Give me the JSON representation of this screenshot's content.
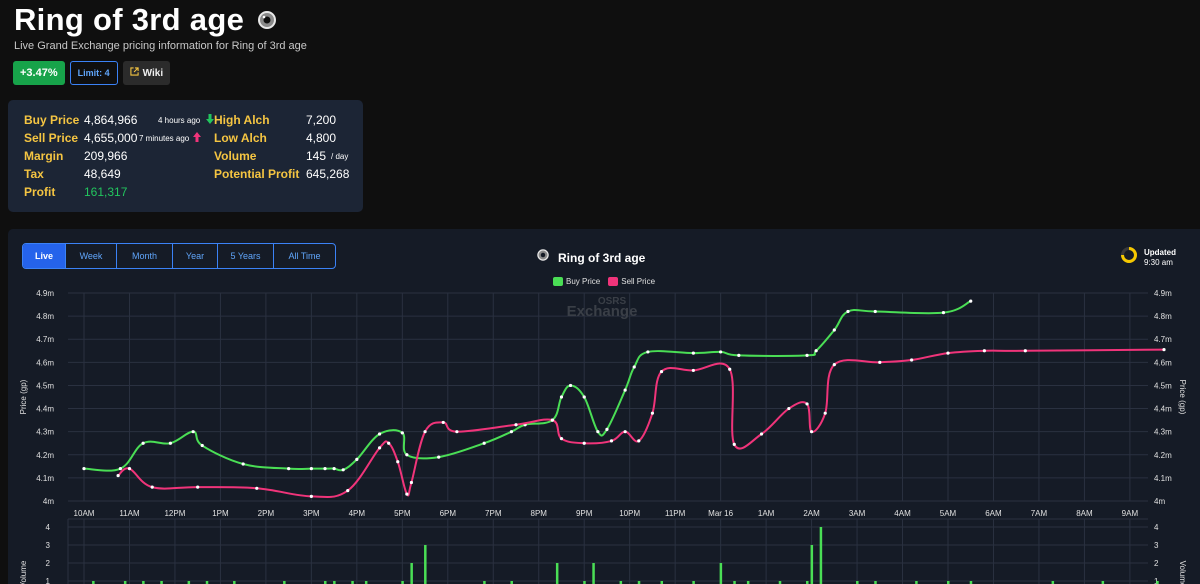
{
  "item": {
    "title": "Ring of 3rd age",
    "subtitle": "Live Grand Exchange pricing information for Ring of 3rd age"
  },
  "badges": {
    "change": "+3.47%",
    "limit": "Limit: 4",
    "wiki": "Wiki"
  },
  "stats": {
    "buy_label": "Buy Price",
    "buy_value": "4,864,966",
    "buy_ago": "4 hours ago",
    "sell_label": "Sell Price",
    "sell_value": "4,655,000",
    "sell_ago": "7 minutes ago",
    "margin_label": "Margin",
    "margin_value": "209,966",
    "tax_label": "Tax",
    "tax_value": "48,649",
    "profit_label": "Profit",
    "profit_value": "161,317",
    "high_alch_label": "High Alch",
    "high_alch_value": "7,200",
    "low_alch_label": "Low Alch",
    "low_alch_value": "4,800",
    "volume_label": "Volume",
    "volume_value": "145",
    "volume_unit": "/ day",
    "potential_label": "Potential Profit",
    "potential_value": "645,268"
  },
  "colors": {
    "buy": "#4ade55",
    "sell": "#f0347a",
    "accent": "#2563eb",
    "label": "#f5c542",
    "positive": "#17a34a"
  },
  "tabs": [
    "Live",
    "Week",
    "Month",
    "Year",
    "5 Years",
    "All Time"
  ],
  "active_tab": "Live",
  "chart_header": {
    "title": "Ring of 3rd age",
    "watermark_top": "OSRS",
    "watermark_bottom": "Exchange",
    "updated_label": "Updated",
    "updated_time": "9:30 am"
  },
  "chart_data": {
    "type": "line",
    "ylabel": "Price (gp)",
    "y2label": "Volume",
    "y_ticks": [
      "4m",
      "4.1m",
      "4.2m",
      "4.3m",
      "4.4m",
      "4.5m",
      "4.6m",
      "4.7m",
      "4.8m",
      "4.9m"
    ],
    "ylim": [
      4000000,
      4900000
    ],
    "x_ticks": [
      "10AM",
      "11AM",
      "12PM",
      "1PM",
      "2PM",
      "3PM",
      "4PM",
      "5PM",
      "6PM",
      "7PM",
      "8PM",
      "9PM",
      "10PM",
      "11PM",
      "Mar 16",
      "1AM",
      "2AM",
      "3AM",
      "4AM",
      "5AM",
      "6AM",
      "7AM",
      "8AM",
      "9AM"
    ],
    "xlim": [
      0,
      23.75
    ],
    "grid": true,
    "legend": "top-center",
    "series": [
      {
        "name": "Buy Price",
        "color": "#4ade55",
        "points": [
          [
            0,
            4140000
          ],
          [
            0.8,
            4140000
          ],
          [
            1.3,
            4250000
          ],
          [
            1.9,
            4250000
          ],
          [
            2.4,
            4300000
          ],
          [
            2.6,
            4240000
          ],
          [
            3.5,
            4160000
          ],
          [
            4.5,
            4140000
          ],
          [
            5.0,
            4140000
          ],
          [
            5.3,
            4140000
          ],
          [
            5.5,
            4140000
          ],
          [
            5.7,
            4135000
          ],
          [
            6.0,
            4180000
          ],
          [
            6.5,
            4290000
          ],
          [
            7.0,
            4295000
          ],
          [
            7.1,
            4200000
          ],
          [
            7.8,
            4190000
          ],
          [
            8.8,
            4250000
          ],
          [
            9.4,
            4300000
          ],
          [
            9.7,
            4330000
          ],
          [
            10.3,
            4350000
          ],
          [
            10.5,
            4450000
          ],
          [
            10.7,
            4500000
          ],
          [
            11.0,
            4450000
          ],
          [
            11.3,
            4300000
          ],
          [
            11.5,
            4310000
          ],
          [
            11.9,
            4480000
          ],
          [
            12.1,
            4580000
          ],
          [
            12.4,
            4645000
          ],
          [
            13.4,
            4640000
          ],
          [
            14.0,
            4645000
          ],
          [
            14.4,
            4630000
          ],
          [
            15.9,
            4630000
          ],
          [
            16.1,
            4650000
          ],
          [
            16.5,
            4740000
          ],
          [
            16.8,
            4820000
          ],
          [
            17.4,
            4820000
          ],
          [
            18.9,
            4815000
          ],
          [
            19.5,
            4865000
          ]
        ]
      },
      {
        "name": "Sell Price",
        "color": "#f0347a",
        "points": [
          [
            0.75,
            4110000
          ],
          [
            1.0,
            4140000
          ],
          [
            1.5,
            4060000
          ],
          [
            2.5,
            4060000
          ],
          [
            3.8,
            4055000
          ],
          [
            5.0,
            4020000
          ],
          [
            5.8,
            4045000
          ],
          [
            6.5,
            4230000
          ],
          [
            6.7,
            4250000
          ],
          [
            6.9,
            4170000
          ],
          [
            7.1,
            4030000
          ],
          [
            7.2,
            4080000
          ],
          [
            7.5,
            4300000
          ],
          [
            7.9,
            4340000
          ],
          [
            8.2,
            4300000
          ],
          [
            9.5,
            4330000
          ],
          [
            10.3,
            4350000
          ],
          [
            10.5,
            4270000
          ],
          [
            11.0,
            4250000
          ],
          [
            11.6,
            4260000
          ],
          [
            11.9,
            4300000
          ],
          [
            12.2,
            4260000
          ],
          [
            12.5,
            4380000
          ],
          [
            12.7,
            4560000
          ],
          [
            13.4,
            4565000
          ],
          [
            14.2,
            4570000
          ],
          [
            14.3,
            4245000
          ],
          [
            14.9,
            4290000
          ],
          [
            15.5,
            4400000
          ],
          [
            15.9,
            4420000
          ],
          [
            16.0,
            4300000
          ],
          [
            16.3,
            4380000
          ],
          [
            16.5,
            4590000
          ],
          [
            17.5,
            4600000
          ],
          [
            18.2,
            4610000
          ],
          [
            19.0,
            4640000
          ],
          [
            19.8,
            4650000
          ],
          [
            20.7,
            4650000
          ],
          [
            23.75,
            4655000
          ]
        ]
      },
      {
        "name": "Volume",
        "color": "#4ade55",
        "y_ticks": [
          "1",
          "2",
          "3",
          "4"
        ],
        "ylim": [
          0,
          4
        ],
        "points": [
          [
            0.2,
            1
          ],
          [
            0.9,
            1
          ],
          [
            1.3,
            1
          ],
          [
            1.7,
            1
          ],
          [
            2.3,
            1
          ],
          [
            2.7,
            1
          ],
          [
            3.3,
            1
          ],
          [
            4.4,
            1
          ],
          [
            5.3,
            1
          ],
          [
            5.5,
            1
          ],
          [
            5.9,
            1
          ],
          [
            6.2,
            1
          ],
          [
            7.0,
            1
          ],
          [
            7.2,
            2
          ],
          [
            7.5,
            3
          ],
          [
            8.8,
            1
          ],
          [
            9.4,
            1
          ],
          [
            10.4,
            2
          ],
          [
            11.0,
            1
          ],
          [
            11.2,
            2
          ],
          [
            11.8,
            1
          ],
          [
            12.2,
            1
          ],
          [
            12.7,
            1
          ],
          [
            13.4,
            1
          ],
          [
            14.0,
            2
          ],
          [
            14.3,
            1
          ],
          [
            14.6,
            1
          ],
          [
            15.3,
            1
          ],
          [
            15.9,
            1
          ],
          [
            16.0,
            3
          ],
          [
            16.2,
            4
          ],
          [
            17.0,
            1
          ],
          [
            17.4,
            1
          ],
          [
            18.3,
            1
          ],
          [
            19.0,
            1
          ],
          [
            19.5,
            1
          ],
          [
            21.3,
            1
          ],
          [
            22.4,
            1
          ],
          [
            23.6,
            1
          ]
        ]
      }
    ]
  }
}
